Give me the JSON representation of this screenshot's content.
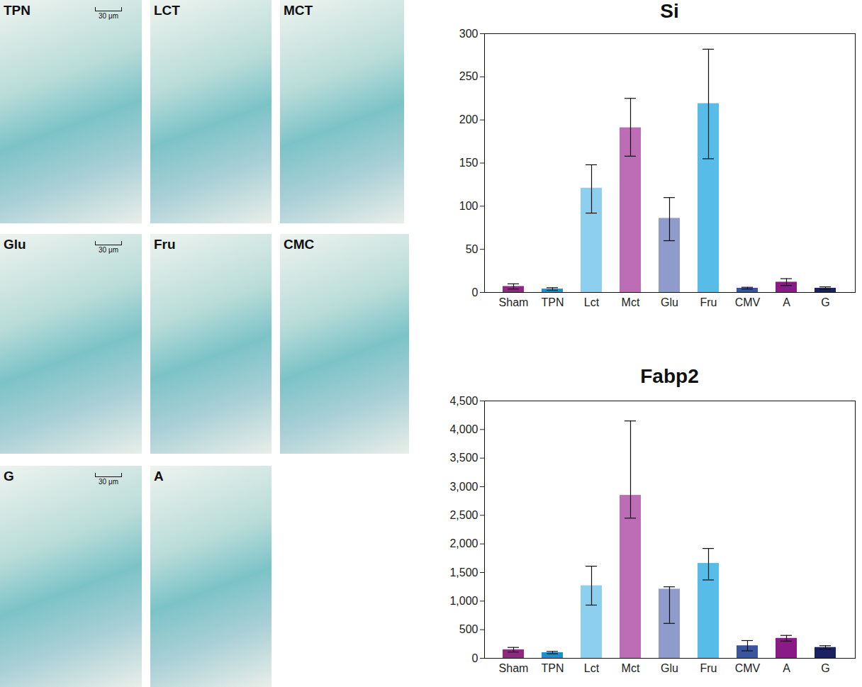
{
  "image_panels": [
    {
      "label": "TPN",
      "scale_bar": "30 μm"
    },
    {
      "label": "LCT"
    },
    {
      "label": "MCT"
    },
    {
      "label": "Glu",
      "scale_bar": "30 μm"
    },
    {
      "label": "Fru"
    },
    {
      "label": "CMC"
    },
    {
      "label": "G",
      "scale_bar": "30 μm"
    },
    {
      "label": "A"
    }
  ],
  "chart_data": [
    {
      "type": "bar",
      "title": "Si",
      "categories": [
        "Sham",
        "TPN",
        "Lct",
        "Mct",
        "Glu",
        "Fru",
        "CMV",
        "A",
        "G"
      ],
      "values": [
        7,
        4,
        121,
        191,
        86,
        219,
        5,
        12,
        5
      ],
      "errors_plus": [
        3,
        1.5,
        27,
        34,
        24,
        63,
        1,
        4,
        1.5
      ],
      "errors_minus": [
        3,
        1.5,
        29,
        33,
        26,
        64,
        1,
        4,
        1.5
      ],
      "colors": [
        "#8c2a82",
        "#1d8fcb",
        "#8dcfee",
        "#bd6db5",
        "#8e9bcb",
        "#58bce8",
        "#3a559f",
        "#8a1a87",
        "#1b2060"
      ],
      "ylim": [
        0,
        300
      ],
      "yticks": [
        0,
        50,
        100,
        150,
        200,
        250,
        300
      ]
    },
    {
      "type": "bar",
      "title": "Fabp2",
      "categories": [
        "Sham",
        "TPN",
        "Lct",
        "Mct",
        "Glu",
        "Fru",
        "CMV",
        "A",
        "G"
      ],
      "values": [
        150,
        100,
        1270,
        2850,
        1210,
        1660,
        220,
        350,
        190
      ],
      "errors_plus": [
        40,
        20,
        340,
        1300,
        40,
        260,
        90,
        50,
        30
      ],
      "errors_minus": [
        40,
        20,
        340,
        400,
        600,
        290,
        90,
        50,
        30
      ],
      "colors": [
        "#8c2a82",
        "#1d8fcb",
        "#8dcfee",
        "#bd6db5",
        "#8e9bcb",
        "#58bce8",
        "#3a559f",
        "#8a1a87",
        "#1b2060"
      ],
      "ylim": [
        0,
        4500
      ],
      "yticks": [
        0,
        500,
        1000,
        1500,
        2000,
        2500,
        3000,
        3500,
        4000,
        4500
      ]
    }
  ]
}
